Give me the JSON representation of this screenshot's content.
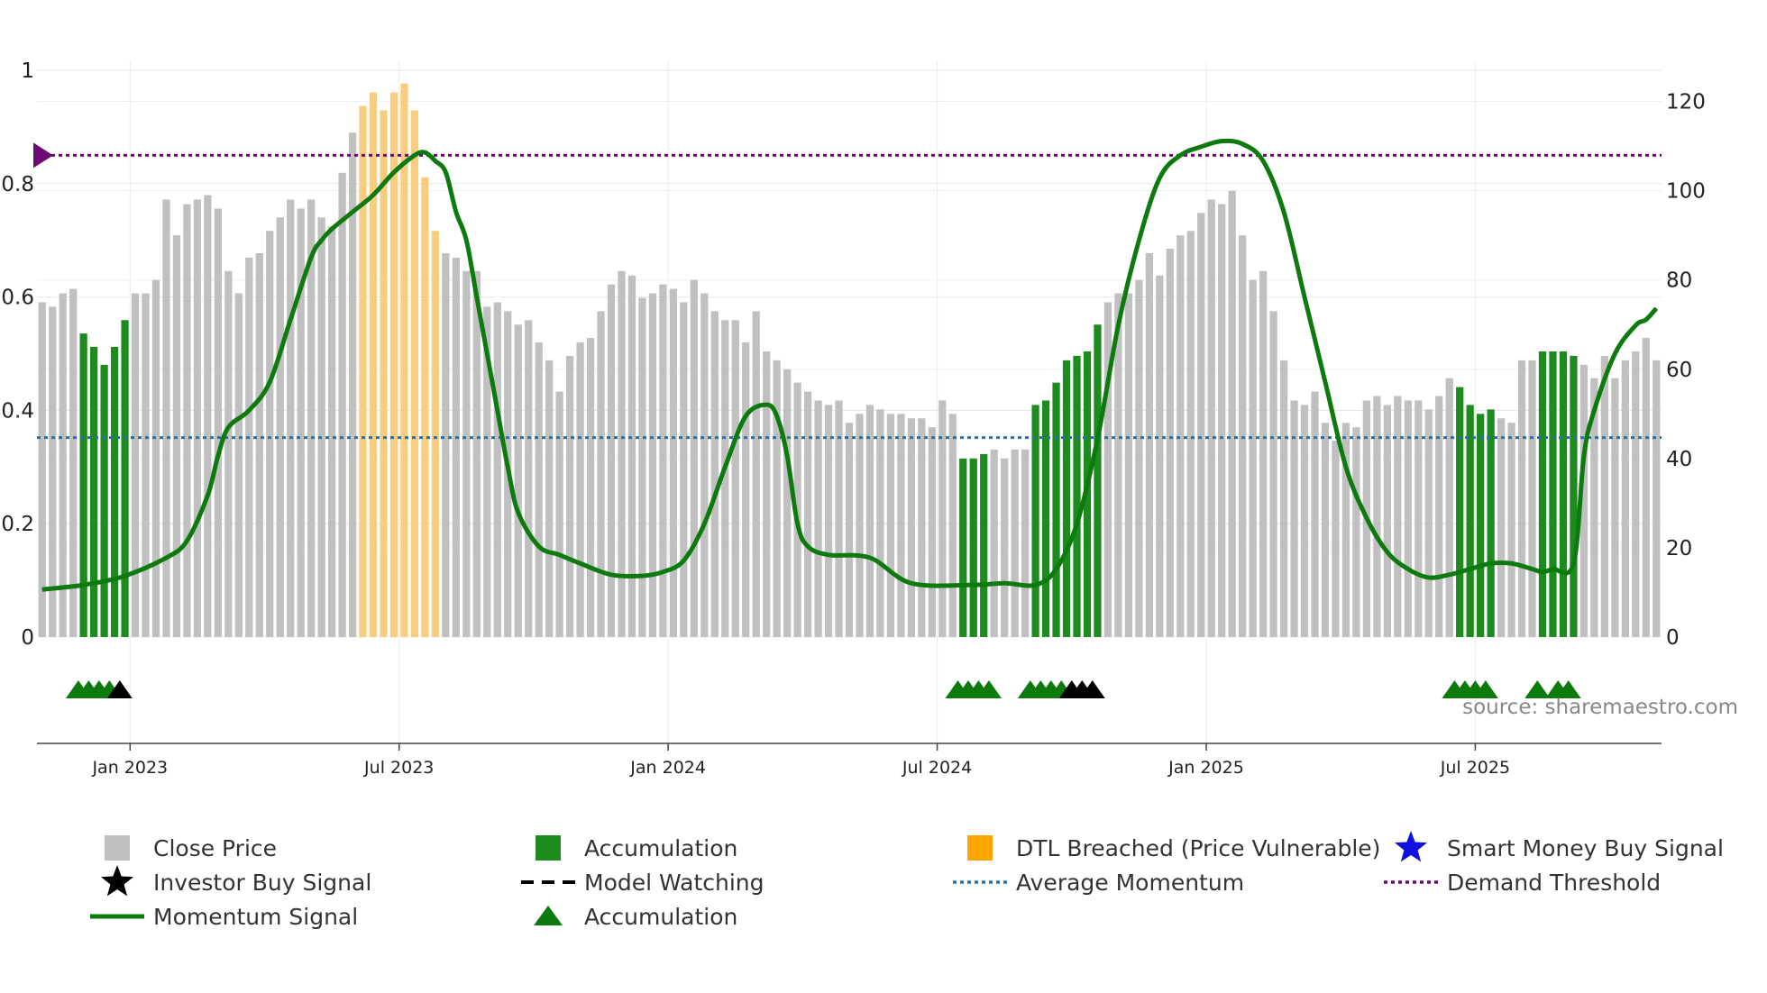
{
  "chart_data": {
    "type": "bar",
    "source_text": "source: sharemaestro.com",
    "left_axis": {
      "ticks": [
        0,
        0.2,
        0.4,
        0.6,
        0.8,
        1
      ],
      "labels": [
        "0",
        "0.2",
        "0.4",
        "0.6",
        "0.8",
        "1"
      ],
      "range": [
        0,
        1
      ]
    },
    "right_axis": {
      "ticks": [
        0,
        20,
        40,
        60,
        80,
        100,
        120
      ],
      "labels": [
        "0",
        "20",
        "40",
        "60",
        "80",
        "100",
        "120"
      ],
      "range": [
        0,
        130
      ]
    },
    "x_ticks": [
      {
        "label": "Jan 2023",
        "index": 8.5
      },
      {
        "label": "Jul 2023",
        "index": 34.5
      },
      {
        "label": "Jan 2024",
        "index": 60.5
      },
      {
        "label": "Jul 2024",
        "index": 86.5
      },
      {
        "label": "Jan 2025",
        "index": 112.5
      },
      {
        "label": "Jul 2025",
        "index": 138.5
      }
    ],
    "bars_count": 157,
    "close_price": [
      75,
      74,
      77,
      78,
      68,
      65,
      61,
      65,
      71,
      77,
      77,
      80,
      98,
      90,
      97,
      98,
      99,
      96,
      82,
      77,
      85,
      86,
      91,
      94,
      98,
      96,
      98,
      94,
      92,
      104,
      113,
      119,
      122,
      118,
      122,
      124,
      118,
      103,
      91,
      86,
      85,
      82,
      82,
      74,
      75,
      73,
      70,
      71,
      66,
      62,
      55,
      63,
      66,
      67,
      73,
      79,
      82,
      81,
      76,
      77,
      79,
      78,
      75,
      80,
      77,
      73,
      71,
      71,
      66,
      73,
      64,
      62,
      60,
      57,
      55,
      53,
      52,
      53,
      48,
      50,
      52,
      51,
      50,
      50,
      49,
      49,
      47,
      53,
      50,
      40,
      40,
      41,
      42,
      40,
      42,
      42,
      52,
      53,
      57,
      62,
      63,
      64,
      70,
      75,
      77,
      77,
      80,
      86,
      81,
      87,
      90,
      91,
      95,
      98,
      97,
      100,
      90,
      80,
      82,
      73,
      62,
      53,
      52,
      55,
      48,
      44,
      48,
      47,
      53,
      54,
      52,
      54,
      53,
      53,
      51,
      54,
      58,
      56,
      52,
      50,
      51,
      49,
      48,
      62,
      62,
      64,
      64,
      64,
      63,
      61,
      58,
      63,
      58,
      62,
      64,
      67,
      62
    ],
    "series_colors": {
      "close": "#c0c0c0",
      "accum": "#1e8b1e",
      "dtl": "#f9cd80",
      "momentum": "#0d7a0d",
      "avg": "#2e6fa1",
      "demand": "#6e0a73",
      "triangle_green": "#0d7a0d",
      "triangle_black": "#000000",
      "smart_money": "#1010e0"
    },
    "accumulation_bar_ranges": [
      [
        4,
        8
      ],
      [
        89,
        91
      ],
      [
        96,
        102
      ],
      [
        137,
        140
      ],
      [
        145,
        148
      ]
    ],
    "dtl_bar_ranges": [
      [
        31,
        38
      ]
    ],
    "average_momentum": 0.352,
    "demand_threshold": 0.85,
    "momentum_points": [
      [
        0,
        0.084
      ],
      [
        4,
        0.092
      ],
      [
        8,
        0.108
      ],
      [
        12,
        0.14
      ],
      [
        14,
        0.17
      ],
      [
        16,
        0.25
      ],
      [
        17,
        0.32
      ],
      [
        18,
        0.37
      ],
      [
        20,
        0.4
      ],
      [
        22,
        0.45
      ],
      [
        24,
        0.56
      ],
      [
        26,
        0.67
      ],
      [
        27,
        0.7
      ],
      [
        28,
        0.72
      ],
      [
        30,
        0.75
      ],
      [
        32,
        0.78
      ],
      [
        34,
        0.82
      ],
      [
        36,
        0.85
      ],
      [
        37,
        0.855
      ],
      [
        38,
        0.84
      ],
      [
        39,
        0.82
      ],
      [
        40,
        0.75
      ],
      [
        41,
        0.7
      ],
      [
        42,
        0.6
      ],
      [
        43,
        0.5
      ],
      [
        44,
        0.4
      ],
      [
        45,
        0.3
      ],
      [
        46,
        0.22
      ],
      [
        48,
        0.16
      ],
      [
        50,
        0.145
      ],
      [
        52,
        0.13
      ],
      [
        55,
        0.11
      ],
      [
        58,
        0.108
      ],
      [
        60,
        0.115
      ],
      [
        62,
        0.135
      ],
      [
        64,
        0.2
      ],
      [
        66,
        0.3
      ],
      [
        68,
        0.39
      ],
      [
        70,
        0.41
      ],
      [
        71,
        0.39
      ],
      [
        72,
        0.32
      ],
      [
        73,
        0.2
      ],
      [
        74,
        0.16
      ],
      [
        76,
        0.145
      ],
      [
        80,
        0.14
      ],
      [
        84,
        0.095
      ],
      [
        90,
        0.092
      ],
      [
        93,
        0.095
      ],
      [
        96,
        0.092
      ],
      [
        98,
        0.12
      ],
      [
        100,
        0.2
      ],
      [
        102,
        0.35
      ],
      [
        104,
        0.55
      ],
      [
        106,
        0.7
      ],
      [
        108,
        0.81
      ],
      [
        110,
        0.85
      ],
      [
        112,
        0.865
      ],
      [
        114,
        0.875
      ],
      [
        116,
        0.87
      ],
      [
        118,
        0.84
      ],
      [
        120,
        0.75
      ],
      [
        122,
        0.6
      ],
      [
        124,
        0.45
      ],
      [
        126,
        0.3
      ],
      [
        128,
        0.21
      ],
      [
        130,
        0.15
      ],
      [
        132,
        0.12
      ],
      [
        134,
        0.105
      ],
      [
        136,
        0.11
      ],
      [
        138,
        0.12
      ],
      [
        140,
        0.13
      ],
      [
        142,
        0.13
      ],
      [
        144,
        0.12
      ],
      [
        145,
        0.115
      ],
      [
        146,
        0.12
      ],
      [
        148,
        0.13
      ],
      [
        149,
        0.32
      ],
      [
        150,
        0.4
      ],
      [
        152,
        0.5
      ],
      [
        154,
        0.55
      ],
      [
        155,
        0.56
      ],
      [
        156,
        0.58
      ]
    ],
    "triangle_markers": [
      {
        "index": 3.5,
        "color": "green"
      },
      {
        "index": 4.5,
        "color": "green"
      },
      {
        "index": 5.5,
        "color": "green"
      },
      {
        "index": 6.5,
        "color": "green"
      },
      {
        "index": 7.5,
        "color": "black"
      },
      {
        "index": 88.5,
        "color": "green"
      },
      {
        "index": 89.5,
        "color": "green"
      },
      {
        "index": 90.5,
        "color": "green"
      },
      {
        "index": 91.5,
        "color": "green"
      },
      {
        "index": 95.5,
        "color": "green"
      },
      {
        "index": 96.5,
        "color": "green"
      },
      {
        "index": 97.5,
        "color": "green"
      },
      {
        "index": 98.5,
        "color": "green"
      },
      {
        "index": 99.5,
        "color": "black"
      },
      {
        "index": 100.5,
        "color": "black"
      },
      {
        "index": 101.5,
        "color": "black"
      },
      {
        "index": 136.5,
        "color": "green"
      },
      {
        "index": 137.5,
        "color": "green"
      },
      {
        "index": 138.5,
        "color": "green"
      },
      {
        "index": 139.5,
        "color": "green"
      },
      {
        "index": 144.5,
        "color": "green"
      },
      {
        "index": 146.5,
        "color": "green"
      },
      {
        "index": 147.5,
        "color": "green"
      }
    ],
    "legend": [
      {
        "label": "Close Price",
        "symbol": "square",
        "color": "#c0c0c0"
      },
      {
        "label": "Accumulation",
        "symbol": "square",
        "color": "#1e8b1e"
      },
      {
        "label": "DTL Breached (Price Vulnerable)",
        "symbol": "square",
        "color": "#ffa500"
      },
      {
        "label": "Smart Money Buy Signal",
        "symbol": "star",
        "color": "#1010e0"
      },
      {
        "label": "Investor Buy Signal",
        "symbol": "star",
        "color": "#000000"
      },
      {
        "label": "Model Watching",
        "symbol": "dash",
        "color": "#000000"
      },
      {
        "label": "Average Momentum",
        "symbol": "dot",
        "color": "#2e6fa1"
      },
      {
        "label": "Demand Threshold",
        "symbol": "dot",
        "color": "#6e0a73"
      },
      {
        "label": "Momentum Signal",
        "symbol": "line",
        "color": "#0d7a0d"
      },
      {
        "label": "Accumulation",
        "symbol": "triangle",
        "color": "#0d7a0d"
      }
    ]
  }
}
